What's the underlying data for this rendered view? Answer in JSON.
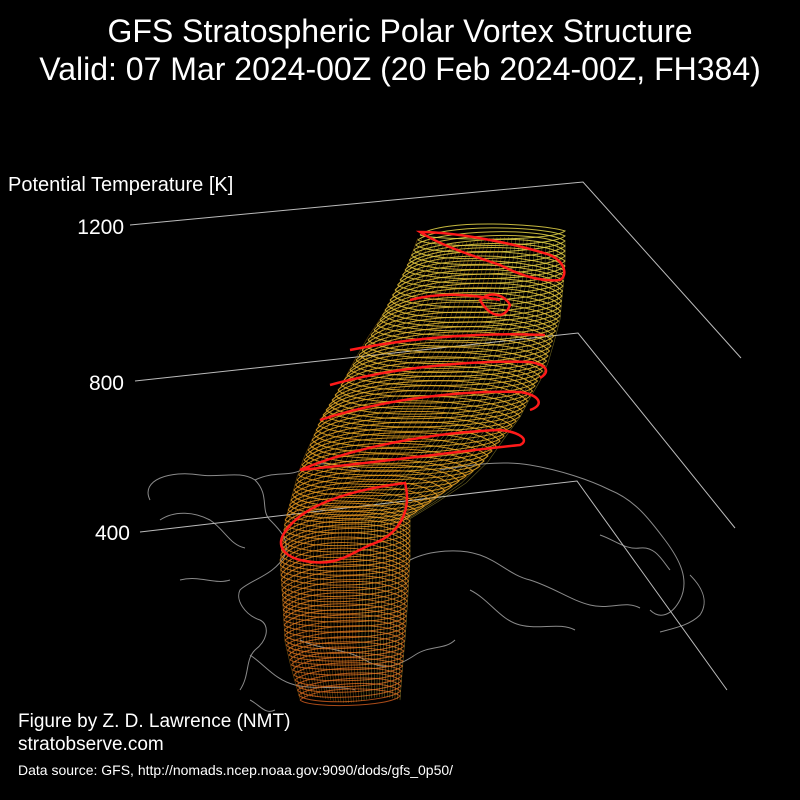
{
  "title_line1": "GFS Stratospheric Polar Vortex Structure",
  "title_line2": "Valid: 07 Mar 2024-00Z  (20 Feb 2024-00Z, FH384)",
  "chart_data": {
    "type": "3d-isosurface",
    "zlabel": "Potential Temperature [K]",
    "zticks": [
      400,
      800,
      1200
    ],
    "zlim": [
      400,
      1200
    ],
    "colors": {
      "background": "#000000",
      "coastline": "#8a8a8a",
      "axis_lines": "#bbbbbb",
      "vortex_edge": "#ff1a1a",
      "vortex_low": "#c8581c",
      "vortex_mid": "#e8a020",
      "vortex_high": "#e8d84a"
    }
  },
  "credits": {
    "author": "Figure by Z. D. Lawrence (NMT)",
    "website": "stratobserve.com",
    "source": "Data source: GFS, http://nomads.ncep.noaa.gov:9090/dods/gfs_0p50/"
  }
}
